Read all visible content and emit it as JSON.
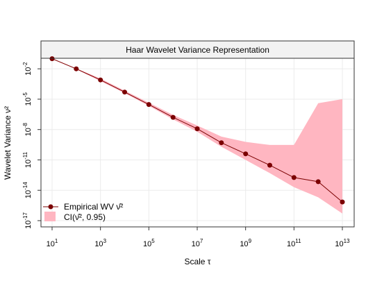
{
  "chart_data": {
    "type": "line",
    "title": "Haar Wavelet Variance Representation",
    "xlabel": "Scale τ",
    "ylabel": "Wavelet Variance ν²",
    "x_scale": "log10",
    "y_scale": "log10",
    "xlim": [
      10,
      10000000000000
    ],
    "ylim": [
      1e-17,
      1
    ],
    "x_ticks": [
      {
        "base": "10",
        "exp": "1",
        "value": 10
      },
      {
        "base": "10",
        "exp": "3",
        "value": 1000
      },
      {
        "base": "10",
        "exp": "5",
        "value": 100000
      },
      {
        "base": "10",
        "exp": "7",
        "value": 10000000
      },
      {
        "base": "10",
        "exp": "9",
        "value": 1000000000
      },
      {
        "base": "10",
        "exp": "11",
        "value": 100000000000
      },
      {
        "base": "10",
        "exp": "13",
        "value": 10000000000000
      }
    ],
    "y_ticks": [
      {
        "base": "10",
        "exp": "-2",
        "value": 0.01
      },
      {
        "base": "10",
        "exp": "-5",
        "value": 1e-05
      },
      {
        "base": "10",
        "exp": "-8",
        "value": 1e-08
      },
      {
        "base": "10",
        "exp": "-11",
        "value": 1e-11
      },
      {
        "base": "10",
        "exp": "-14",
        "value": 1e-14
      },
      {
        "base": "10",
        "exp": "-17",
        "value": 1e-17
      }
    ],
    "grid": true,
    "legend_position": "bottom-left",
    "legend": [
      {
        "label": "Empirical WV ν̂²",
        "kind": "line-point",
        "color": "#7b0000"
      },
      {
        "label": "CI(ν̂², 0.95)",
        "kind": "band",
        "color": "#ffb6c1"
      }
    ],
    "series": [
      {
        "name": "Empirical WV ν̂²",
        "color": "#7b0000",
        "x": [
          10,
          100,
          1000,
          10000,
          100000,
          1000000,
          10000000,
          100000000,
          1000000000,
          10000000000,
          100000000000,
          1000000000000,
          10000000000000
        ],
        "y": [
          0.1,
          0.01,
          0.0008,
          5e-05,
          3e-06,
          1.6e-07,
          1.2e-08,
          5e-10,
          4e-11,
          3e-12,
          1.8e-13,
          7e-14,
          7e-16
        ]
      }
    ],
    "ci_band": {
      "name": "CI(ν̂², 0.95)",
      "color": "#ffb6c1",
      "x": [
        10,
        100,
        1000,
        10000,
        100000,
        1000000,
        10000000,
        100000000,
        1000000000,
        10000000000,
        100000000000,
        1000000000000,
        10000000000000
      ],
      "lower": [
        0.09,
        0.009,
        0.0006,
        4e-05,
        2.2e-06,
        1e-07,
        6e-09,
        2e-10,
        1e-11,
        5e-13,
        2e-14,
        2e-15,
        5e-17
      ],
      "upper": [
        0.11,
        0.011,
        0.0011,
        7e-05,
        4.5e-06,
        2.8e-07,
        2.5e-08,
        2e-09,
        6e-10,
        3e-10,
        3e-10,
        4e-06,
        1e-05
      ]
    }
  }
}
